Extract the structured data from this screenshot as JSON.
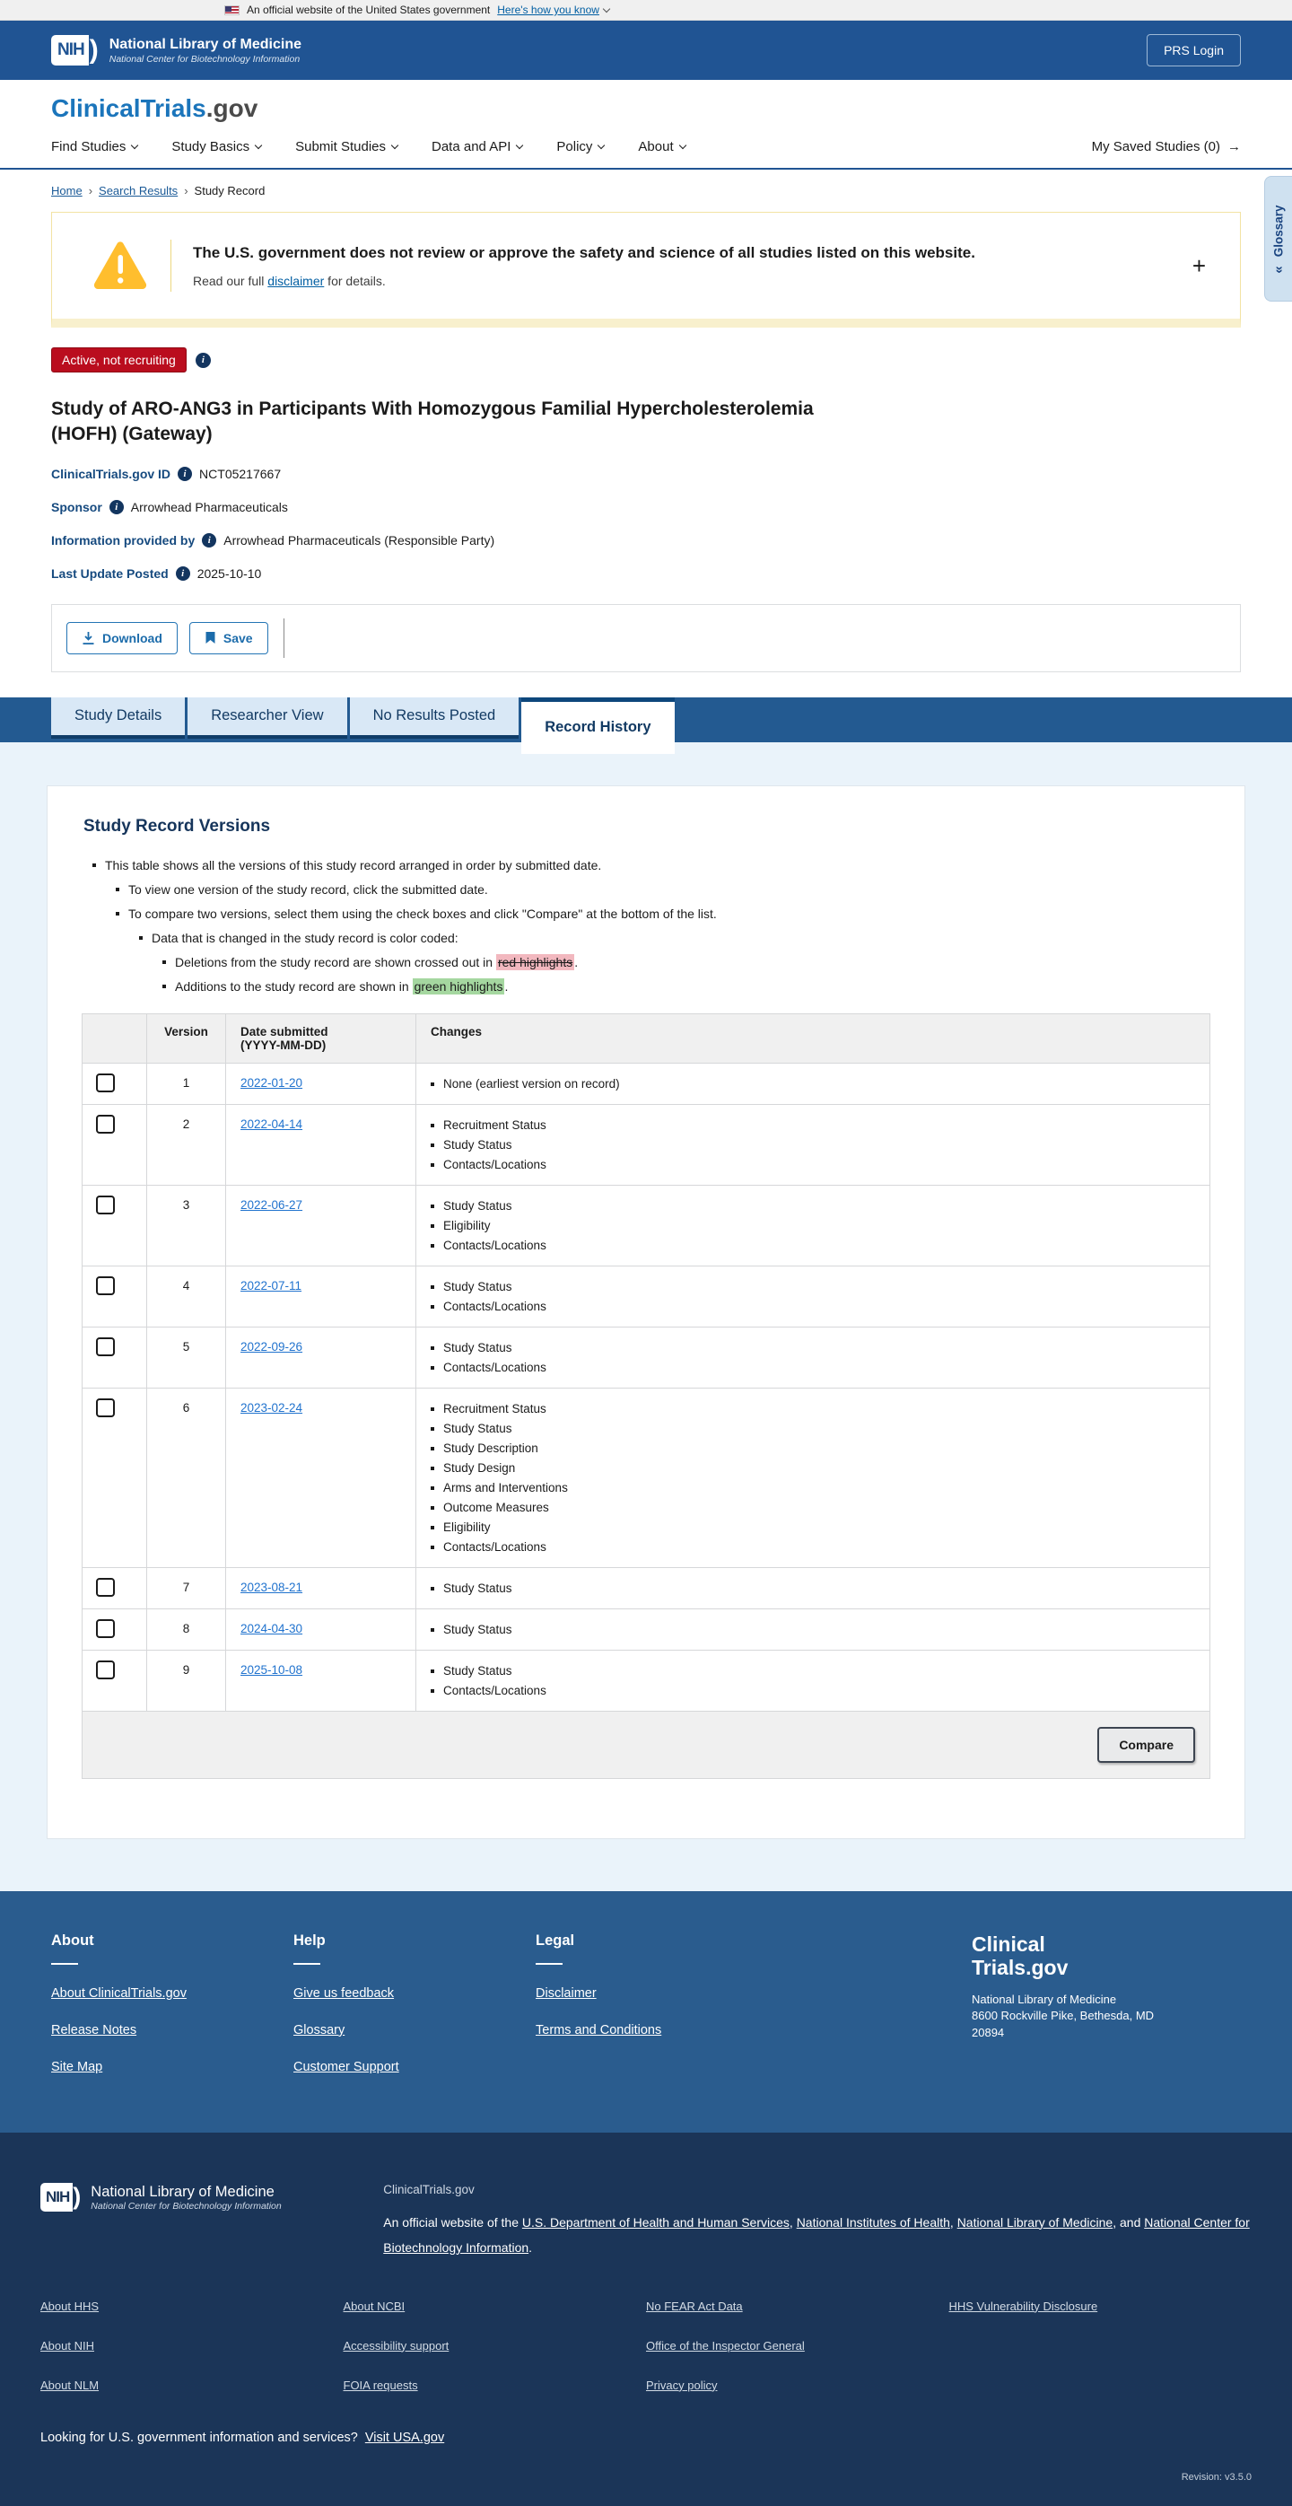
{
  "banner": {
    "text": "An official website of the United States government",
    "link": "Here's how you know"
  },
  "nih_header": {
    "logo_text": "NIH",
    "swoosh": ")",
    "org": "National Library of Medicine",
    "suborg": "National Center for Biotechnology Information",
    "login_button": "PRS Login"
  },
  "site_header": {
    "brand": "ClinicalTrials",
    "brand_suffix": ".gov",
    "nav_items": [
      "Find Studies",
      "Study Basics",
      "Submit Studies",
      "Data and API",
      "Policy",
      "About"
    ],
    "saved_studies": "My Saved Studies (0)",
    "saved_arrow": "→"
  },
  "breadcrumb": {
    "links": [
      "Home",
      "Search Results"
    ],
    "current": "Study Record",
    "separator": "›"
  },
  "glossary_tab": {
    "label": "Glossary",
    "collapse_icon": "«"
  },
  "warning_banner": {
    "heading": "The U.S. government does not review or approve the safety and science of all studies listed on this website.",
    "body_pre": "Read our full ",
    "body_link": "disclaimer",
    "body_post": " for details.",
    "expand_icon": "+"
  },
  "study": {
    "status_badge": "Active, not recruiting",
    "title": "Study of ARO-ANG3 in Participants With Homozygous Familial Hypercholesterolemia (HOFH) (Gateway)",
    "fields": [
      {
        "label": "ClinicalTrials.gov ID",
        "value": "NCT05217667"
      },
      {
        "label": "Sponsor",
        "value": "Arrowhead Pharmaceuticals"
      },
      {
        "label": "Information provided by",
        "value": "Arrowhead Pharmaceuticals (Responsible Party)"
      },
      {
        "label": "Last Update Posted",
        "value": "2025-10-10"
      }
    ],
    "actions": {
      "download": "Download",
      "save": "Save"
    }
  },
  "tabs": [
    {
      "label": "Study Details",
      "active": false
    },
    {
      "label": "Researcher View",
      "active": false
    },
    {
      "label": "No Results Posted",
      "active": false
    },
    {
      "label": "Record History",
      "active": true
    }
  ],
  "record_history": {
    "heading": "Study Record Versions",
    "intro": {
      "l1": "This table shows all the versions of this study record arranged in order by submitted date.",
      "l2a": "To view one version of the study record, click the submitted date.",
      "l2b": "To compare two versions, select them using the check boxes and click \"Compare\" at the bottom of the list.",
      "l3": "Data that is changed in the study record is color coded:",
      "l4a_pre": "Deletions from the study record are shown crossed out in ",
      "l4a_hl": "red highlights",
      "l4a_post": ".",
      "l4b_pre": "Additions to the study record are shown in ",
      "l4b_hl": "green highlights",
      "l4b_post": "."
    },
    "table": {
      "headers": {
        "version": "Version",
        "date_line1": "Date submitted",
        "date_line2": "(YYYY-MM-DD)",
        "changes": "Changes"
      },
      "rows": [
        {
          "version": "1",
          "date": "2022-01-20",
          "changes": [
            "None (earliest version on record)"
          ]
        },
        {
          "version": "2",
          "date": "2022-04-14",
          "changes": [
            "Recruitment Status",
            "Study Status",
            "Contacts/Locations"
          ]
        },
        {
          "version": "3",
          "date": "2022-06-27",
          "changes": [
            "Study Status",
            "Eligibility",
            "Contacts/Locations"
          ]
        },
        {
          "version": "4",
          "date": "2022-07-11",
          "changes": [
            "Study Status",
            "Contacts/Locations"
          ]
        },
        {
          "version": "5",
          "date": "2022-09-26",
          "changes": [
            "Study Status",
            "Contacts/Locations"
          ]
        },
        {
          "version": "6",
          "date": "2023-02-24",
          "changes": [
            "Recruitment Status",
            "Study Status",
            "Study Description",
            "Study Design",
            "Arms and Interventions",
            "Outcome Measures",
            "Eligibility",
            "Contacts/Locations"
          ]
        },
        {
          "version": "7",
          "date": "2023-08-21",
          "changes": [
            "Study Status"
          ]
        },
        {
          "version": "8",
          "date": "2024-04-30",
          "changes": [
            "Study Status"
          ]
        },
        {
          "version": "9",
          "date": "2025-10-08",
          "changes": [
            "Study Status",
            "Contacts/Locations"
          ]
        }
      ],
      "compare_button": "Compare"
    }
  },
  "site_footer": {
    "columns": [
      {
        "heading": "About",
        "links": [
          "About ClinicalTrials.gov",
          "Release Notes",
          "Site Map"
        ]
      },
      {
        "heading": "Help",
        "links": [
          "Give us feedback",
          "Glossary",
          "Customer Support"
        ]
      },
      {
        "heading": "Legal",
        "links": [
          "Disclaimer",
          "Terms and Conditions"
        ]
      }
    ],
    "logo_line1": "Clinical",
    "logo_line2": "Trials.gov",
    "address_lines": [
      "National Library of Medicine",
      "8600 Rockville Pike, Bethesda, MD",
      "20894"
    ]
  },
  "gov_footer": {
    "logo_text": "NIH",
    "swoosh": ")",
    "org": "National Library of Medicine",
    "suborg": "National Center for Biotechnology Information",
    "site_name": "ClinicalTrials.gov",
    "official_pre": "An official website of the ",
    "official_links": [
      "U.S. Department of Health and Human Services",
      "National Institutes of Health",
      "National Library of Medicine"
    ],
    "official_sep": ", ",
    "official_and": "and ",
    "official_last_link": "National Center for Biotechnology Information",
    "official_end": ".",
    "link_columns": [
      [
        "About HHS",
        "About NIH",
        "About NLM"
      ],
      [
        "About NCBI",
        "Accessibility support",
        "FOIA requests"
      ],
      [
        "No FEAR Act Data",
        "Office of the Inspector General",
        "Privacy policy"
      ],
      [
        "HHS Vulnerability Disclosure"
      ]
    ],
    "usa_text": "Looking for U.S. government information and services?",
    "usa_link": "Visit USA.gov",
    "revision": "Revision: v3.5.0"
  },
  "colors": {
    "header_blue": "#205493",
    "tab_bar_blue": "#235a91",
    "footer_blue": "#2a5c8e",
    "footer_dark": "#1b3558",
    "badge_red": "#ba0d1e",
    "link_blue": "#005ea2",
    "date_link_blue": "#2173ce",
    "highlight_red": "#f2b8bf",
    "highlight_green": "#a5d7a0",
    "warning_yellow": "#ffbe2e"
  }
}
